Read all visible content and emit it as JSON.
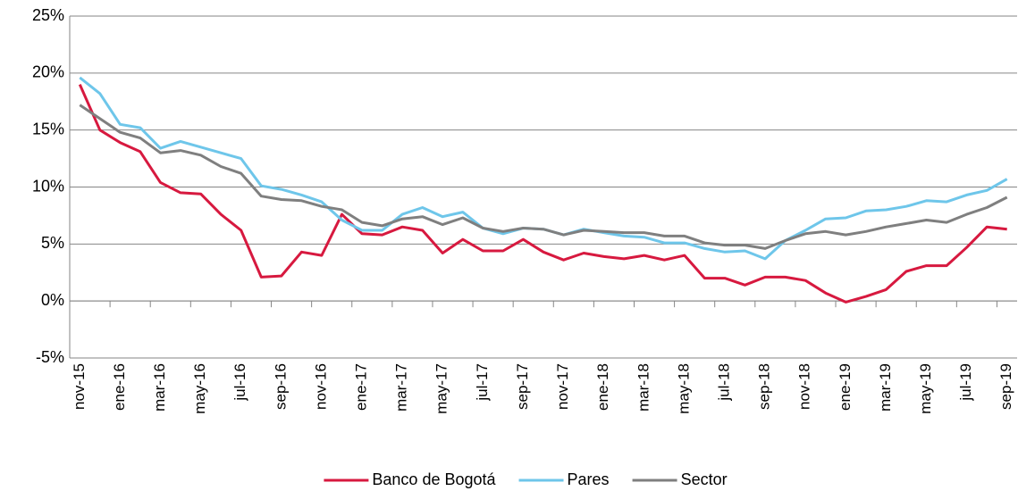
{
  "chart_data": {
    "type": "line",
    "categories": [
      "nov-15",
      null,
      "ene-16",
      null,
      "mar-16",
      null,
      "may-16",
      null,
      "jul-16",
      null,
      "sep-16",
      null,
      "nov-16",
      null,
      "ene-17",
      null,
      "mar-17",
      null,
      "may-17",
      null,
      "jul-17",
      null,
      "sep-17",
      null,
      "nov-17",
      null,
      "ene-18",
      null,
      "mar-18",
      null,
      "may-18",
      null,
      "jul-18",
      null,
      "sep-18",
      null,
      "nov-18",
      null,
      "ene-19",
      null,
      "mar-19",
      null,
      "may-19",
      null,
      "jul-19",
      null,
      "sep-19"
    ],
    "series": [
      {
        "name": "Banco de Bogotá",
        "color": "#d7193f",
        "values": [
          19.0,
          15.0,
          13.9,
          13.1,
          10.4,
          9.5,
          9.4,
          7.6,
          6.2,
          2.1,
          2.2,
          4.3,
          4.0,
          7.6,
          5.9,
          5.8,
          6.5,
          6.2,
          4.2,
          5.4,
          4.4,
          4.4,
          5.4,
          4.3,
          3.6,
          4.2,
          3.9,
          3.7,
          4.0,
          3.6,
          4.0,
          2.0,
          2.0,
          1.4,
          2.1,
          2.1,
          1.8,
          0.7,
          -0.1,
          0.4,
          1.0,
          2.6,
          3.1,
          3.1,
          4.7,
          6.5,
          6.3
        ]
      },
      {
        "name": "Pares",
        "color": "#6ec6ea",
        "values": [
          19.6,
          18.2,
          15.5,
          15.2,
          13.4,
          14.0,
          13.5,
          13.0,
          12.5,
          10.1,
          9.8,
          9.3,
          8.7,
          7.1,
          6.2,
          6.2,
          7.6,
          8.2,
          7.4,
          7.8,
          6.4,
          5.9,
          6.4,
          6.3,
          5.8,
          6.3,
          6.0,
          5.7,
          5.6,
          5.1,
          5.1,
          4.6,
          4.3,
          4.4,
          3.7,
          5.3,
          6.2,
          7.2,
          7.3,
          7.9,
          8.0,
          8.3,
          8.8,
          8.7,
          9.3,
          9.7,
          10.7
        ]
      },
      {
        "name": "Sector",
        "color": "#7f7f7f",
        "values": [
          17.2,
          16.0,
          14.8,
          14.3,
          13.0,
          13.2,
          12.8,
          11.8,
          11.2,
          9.2,
          8.9,
          8.8,
          8.3,
          8.0,
          6.9,
          6.6,
          7.2,
          7.4,
          6.7,
          7.3,
          6.4,
          6.1,
          6.4,
          6.3,
          5.8,
          6.2,
          6.1,
          6.0,
          6.0,
          5.7,
          5.7,
          5.1,
          4.9,
          4.9,
          4.6,
          5.3,
          5.9,
          6.1,
          5.8,
          6.1,
          6.5,
          6.8,
          7.1,
          6.9,
          7.6,
          8.2,
          9.1
        ]
      }
    ],
    "ylim": [
      -5,
      25
    ],
    "yticks": [
      {
        "value": -5,
        "label": "-5%"
      },
      {
        "value": 0,
        "label": "0%"
      },
      {
        "value": 5,
        "label": "5%"
      },
      {
        "value": 10,
        "label": "10%"
      },
      {
        "value": 15,
        "label": "15%"
      },
      {
        "value": 20,
        "label": "20%"
      },
      {
        "value": 25,
        "label": "25%"
      }
    ],
    "grid": true,
    "legend": "bottom"
  }
}
